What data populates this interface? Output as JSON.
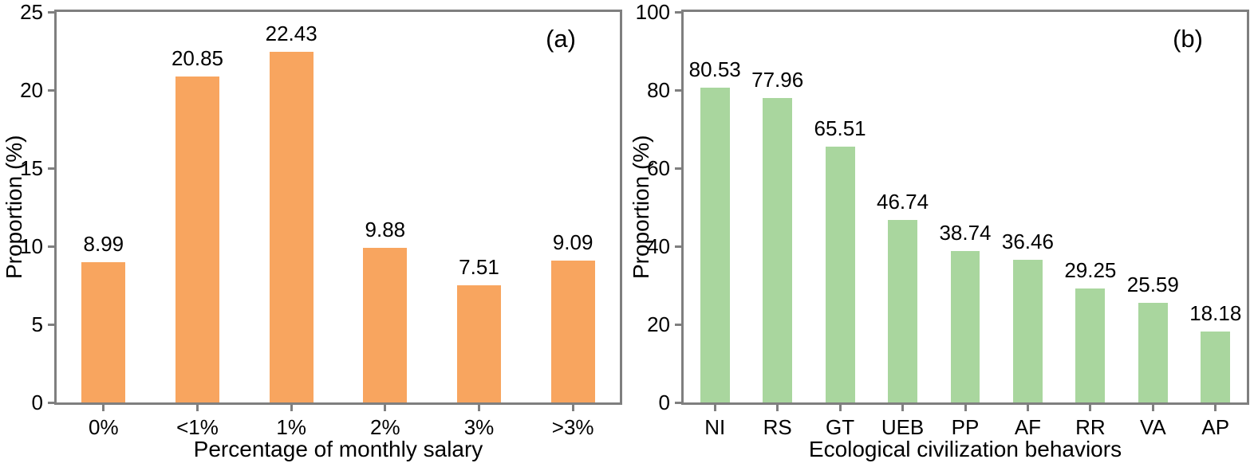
{
  "chart_data": [
    {
      "type": "bar",
      "panel_label": "(a)",
      "xlabel": "Percentage of monthly salary",
      "ylabel": "Proportion (%)",
      "categories": [
        "0%",
        "<1%",
        "1%",
        "2%",
        "3%",
        ">3%"
      ],
      "values": [
        8.99,
        20.85,
        22.43,
        9.88,
        7.51,
        9.09
      ],
      "value_labels": [
        "8.99",
        "20.85",
        "22.43",
        "9.88",
        "7.51",
        "9.09"
      ],
      "ylim": [
        0,
        25
      ],
      "yticks": [
        0,
        5,
        10,
        15,
        20,
        25
      ],
      "bar_color": "#F8A55F",
      "grid": false,
      "legend": "none"
    },
    {
      "type": "bar",
      "panel_label": "(b)",
      "xlabel": "Ecological civilization behaviors",
      "ylabel": "Proportion (%)",
      "categories": [
        "NI",
        "RS",
        "GT",
        "UEB",
        "PP",
        "AF",
        "RR",
        "VA",
        "AP"
      ],
      "values": [
        80.53,
        77.96,
        65.51,
        46.74,
        38.74,
        36.46,
        29.25,
        25.59,
        18.18
      ],
      "value_labels": [
        "80.53",
        "77.96",
        "65.51",
        "46.74",
        "38.74",
        "36.46",
        "29.25",
        "25.59",
        "18.18"
      ],
      "ylim": [
        0,
        100
      ],
      "yticks": [
        0,
        20,
        40,
        60,
        80,
        100
      ],
      "bar_color": "#A9D69E",
      "grid": false,
      "legend": "none"
    }
  ],
  "colors": {
    "spine": "#7f7f7f",
    "text": "#000000",
    "background": "#ffffff",
    "bar_orange": "#F8A55F",
    "bar_green": "#A9D69E"
  }
}
